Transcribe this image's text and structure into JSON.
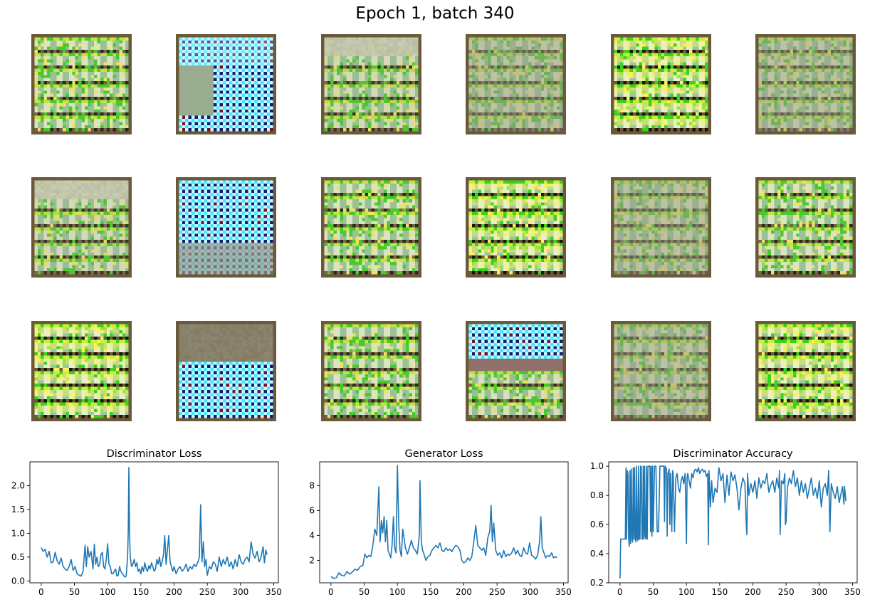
{
  "figure": {
    "suptitle": "Epoch 1, batch 340"
  },
  "samples": {
    "grid_rows": 3,
    "grid_cols": 6,
    "tile_pixel_resolution": 32,
    "kinds": [
      [
        "green-plaid",
        "cyan-blue-dots",
        "grey-top-plaid",
        "muted-plaid",
        "bright-plaid",
        "muted-plaid"
      ],
      [
        "grey-top-plaid",
        "cyan-blue-dots",
        "green-plaid",
        "bright-plaid",
        "muted-plaid",
        "green-plaid"
      ],
      [
        "bright-plaid",
        "grey-top-cyan-dots",
        "green-plaid",
        "cyan-dots-top-plaid",
        "muted-plaid",
        "bright-plaid"
      ]
    ],
    "colors": {
      "dark": "#1a1405",
      "brown": "#6b5a3a",
      "green": "#3ad21a",
      "lime": "#c8f03a",
      "yellow": "#f8f060",
      "cream": "#e8f0c8",
      "pale_green": "#9ac89a",
      "grey": "#9a9a8a",
      "cyan": "#40e8ff",
      "navy": "#102070",
      "light_cyan": "#c8f8ff",
      "maroon": "#7a1020"
    }
  },
  "chart_data": [
    {
      "type": "line",
      "title": "Discriminator Loss",
      "xlim": [
        -17,
        357
      ],
      "ylim": [
        -0.04,
        2.5
      ],
      "xticks": [
        0,
        50,
        100,
        150,
        200,
        250,
        300,
        350
      ],
      "yticks": [
        0.0,
        0.5,
        1.0,
        1.5,
        2.0
      ],
      "ytick_labels": [
        "0.0",
        "0.5",
        "1.0",
        "1.5",
        "2.0"
      ],
      "color": "#1f77b4",
      "x": [
        0,
        3,
        6,
        9,
        12,
        15,
        18,
        21,
        24,
        27,
        30,
        33,
        36,
        39,
        42,
        45,
        48,
        51,
        54,
        57,
        60,
        63,
        66,
        68,
        70,
        72,
        75,
        78,
        80,
        82,
        84,
        86,
        88,
        90,
        92,
        94,
        96,
        98,
        100,
        102,
        104,
        106,
        108,
        110,
        112,
        114,
        116,
        118,
        120,
        122,
        124,
        126,
        128,
        130,
        131,
        132,
        133,
        134,
        136,
        138,
        140,
        142,
        144,
        146,
        148,
        150,
        152,
        154,
        156,
        158,
        160,
        162,
        164,
        166,
        168,
        170,
        172,
        174,
        176,
        178,
        180,
        182,
        184,
        186,
        188,
        190,
        192,
        194,
        196,
        198,
        200,
        203,
        206,
        209,
        212,
        215,
        218,
        221,
        224,
        227,
        230,
        233,
        236,
        238,
        240,
        242,
        244,
        246,
        248,
        250,
        253,
        256,
        259,
        262,
        265,
        268,
        271,
        274,
        277,
        280,
        283,
        286,
        289,
        292,
        295,
        298,
        301,
        304,
        307,
        310,
        313,
        316,
        319,
        322,
        325,
        328,
        331,
        334,
        336,
        338,
        340
      ],
      "y": [
        0.7,
        0.62,
        0.66,
        0.5,
        0.62,
        0.38,
        0.4,
        0.6,
        0.42,
        0.35,
        0.48,
        0.3,
        0.25,
        0.22,
        0.3,
        0.45,
        0.22,
        0.3,
        0.15,
        0.12,
        0.1,
        0.2,
        0.75,
        0.3,
        0.72,
        0.5,
        0.62,
        0.25,
        0.77,
        0.35,
        0.5,
        0.3,
        0.35,
        0.55,
        0.6,
        0.3,
        0.25,
        0.45,
        0.78,
        0.35,
        0.3,
        0.15,
        0.15,
        0.2,
        0.25,
        0.1,
        0.12,
        0.3,
        0.2,
        0.15,
        0.12,
        0.08,
        0.1,
        0.5,
        1.0,
        2.38,
        1.0,
        0.5,
        0.3,
        0.35,
        0.45,
        0.3,
        0.38,
        0.2,
        0.25,
        0.15,
        0.3,
        0.2,
        0.38,
        0.25,
        0.2,
        0.32,
        0.25,
        0.38,
        0.3,
        0.2,
        0.25,
        0.45,
        0.35,
        0.5,
        0.3,
        0.4,
        0.55,
        0.95,
        0.35,
        0.65,
        0.95,
        0.4,
        0.3,
        0.2,
        0.3,
        0.15,
        0.25,
        0.3,
        0.2,
        0.25,
        0.35,
        0.2,
        0.3,
        0.25,
        0.35,
        0.3,
        0.4,
        0.5,
        1.6,
        0.4,
        0.82,
        0.3,
        0.45,
        0.12,
        0.3,
        0.25,
        0.4,
        0.35,
        0.2,
        0.5,
        0.3,
        0.45,
        0.35,
        0.5,
        0.3,
        0.4,
        0.25,
        0.45,
        0.3,
        0.55,
        0.4,
        0.35,
        0.45,
        0.5,
        0.4,
        0.82,
        0.55,
        0.48,
        0.62,
        0.4,
        0.5,
        0.72,
        0.38,
        0.65,
        0.55
      ]
    },
    {
      "type": "line",
      "title": "Generator Loss",
      "xlim": [
        -17,
        357
      ],
      "ylim": [
        0.2,
        9.9
      ],
      "xticks": [
        0,
        50,
        100,
        150,
        200,
        250,
        300,
        350
      ],
      "yticks": [
        2,
        4,
        6,
        8
      ],
      "ytick_labels": [
        "2",
        "4",
        "6",
        "8"
      ],
      "color": "#1f77b4",
      "x": [
        0,
        4,
        8,
        12,
        16,
        20,
        24,
        28,
        32,
        36,
        40,
        44,
        48,
        51,
        54,
        57,
        60,
        63,
        66,
        69,
        72,
        74,
        76,
        78,
        80,
        82,
        84,
        86,
        88,
        90,
        92,
        94,
        96,
        98,
        100,
        102,
        104,
        106,
        108,
        110,
        112,
        115,
        118,
        121,
        124,
        127,
        130,
        133,
        134,
        136,
        138,
        140,
        143,
        146,
        149,
        152,
        155,
        158,
        161,
        164,
        167,
        170,
        173,
        176,
        179,
        182,
        185,
        188,
        191,
        194,
        197,
        200,
        203,
        206,
        209,
        212,
        215,
        218,
        221,
        224,
        227,
        230,
        233,
        236,
        239,
        241,
        243,
        245,
        248,
        251,
        254,
        257,
        260,
        263,
        266,
        269,
        272,
        275,
        278,
        281,
        284,
        287,
        290,
        293,
        296,
        299,
        302,
        305,
        308,
        311,
        314,
        316,
        318,
        320,
        323,
        326,
        329,
        332,
        335,
        338,
        340
      ],
      "y": [
        0.7,
        0.55,
        0.6,
        1.0,
        0.8,
        0.75,
        1.1,
        0.9,
        1.05,
        1.3,
        1.2,
        1.5,
        1.6,
        2.5,
        2.2,
        2.4,
        2.3,
        3.2,
        4.5,
        4.0,
        7.9,
        3.5,
        5.2,
        4.2,
        5.5,
        3.5,
        5.2,
        2.8,
        2.5,
        2.2,
        3.2,
        5.5,
        3.0,
        2.6,
        9.6,
        5.0,
        2.8,
        2.3,
        4.5,
        3.8,
        3.0,
        2.5,
        3.0,
        3.6,
        3.0,
        2.8,
        2.5,
        4.0,
        8.4,
        3.5,
        2.8,
        2.5,
        2.0,
        2.3,
        2.4,
        2.8,
        3.0,
        3.2,
        3.0,
        3.4,
        2.8,
        2.7,
        3.0,
        2.8,
        2.9,
        2.7,
        3.0,
        3.2,
        3.1,
        2.8,
        2.0,
        1.8,
        1.9,
        2.2,
        2.0,
        2.3,
        3.5,
        4.8,
        3.2,
        3.0,
        2.8,
        3.0,
        2.4,
        3.8,
        4.3,
        6.4,
        3.5,
        5.0,
        2.8,
        2.4,
        2.6,
        2.2,
        2.8,
        2.3,
        2.5,
        2.4,
        2.6,
        3.0,
        2.5,
        2.8,
        2.4,
        2.3,
        3.0,
        2.6,
        2.5,
        3.4,
        2.4,
        2.3,
        2.1,
        2.4,
        3.5,
        5.5,
        3.0,
        2.7,
        2.2,
        2.4,
        2.3,
        2.6,
        2.2,
        2.3,
        2.2
      ]
    },
    {
      "type": "line",
      "title": "Discriminator Accuracy",
      "xlim": [
        -17,
        357
      ],
      "ylim": [
        0.2,
        1.03
      ],
      "xticks": [
        0,
        50,
        100,
        150,
        200,
        250,
        300,
        350
      ],
      "yticks": [
        0.2,
        0.4,
        0.6,
        0.8,
        1.0
      ],
      "ytick_labels": [
        "0.2",
        "0.4",
        "0.6",
        "0.8",
        "1.0"
      ],
      "color": "#1f77b4",
      "x": [
        0,
        1,
        2,
        4,
        6,
        8,
        9,
        10,
        11,
        12,
        13,
        14,
        15,
        16,
        17,
        18,
        19,
        20,
        21,
        22,
        23,
        24,
        25,
        26,
        27,
        28,
        29,
        30,
        31,
        32,
        33,
        34,
        35,
        36,
        37,
        38,
        39,
        40,
        41,
        42,
        43,
        44,
        45,
        46,
        47,
        48,
        49,
        50,
        52,
        54,
        56,
        58,
        60,
        62,
        64,
        66,
        67,
        68,
        70,
        71,
        72,
        74,
        75,
        76,
        78,
        79,
        80,
        82,
        84,
        86,
        88,
        90,
        92,
        94,
        96,
        98,
        100,
        101,
        102,
        104,
        106,
        108,
        110,
        112,
        114,
        116,
        118,
        120,
        122,
        124,
        126,
        128,
        130,
        132,
        133,
        134,
        136,
        138,
        140,
        143,
        146,
        149,
        152,
        155,
        158,
        161,
        164,
        167,
        170,
        173,
        176,
        179,
        182,
        185,
        188,
        190,
        191,
        192,
        194,
        197,
        200,
        203,
        206,
        209,
        212,
        215,
        218,
        221,
        224,
        227,
        230,
        233,
        236,
        239,
        240,
        241,
        243,
        246,
        248,
        249,
        250,
        252,
        255,
        258,
        261,
        264,
        267,
        270,
        273,
        276,
        279,
        282,
        285,
        288,
        291,
        294,
        297,
        300,
        303,
        306,
        309,
        312,
        314,
        316,
        318,
        321,
        324,
        327,
        330,
        333,
        335,
        337,
        338,
        340
      ],
      "y": [
        0.23,
        0.5,
        0.5,
        0.5,
        0.5,
        0.5,
        0.99,
        0.5,
        0.97,
        0.95,
        0.5,
        0.45,
        0.97,
        0.47,
        0.98,
        0.5,
        0.48,
        0.99,
        0.5,
        0.99,
        0.5,
        0.48,
        1.0,
        0.5,
        0.49,
        1.0,
        0.5,
        0.5,
        1.0,
        1.0,
        0.5,
        0.5,
        1.0,
        0.5,
        1.0,
        0.52,
        0.5,
        1.0,
        0.5,
        1.0,
        1.0,
        1.0,
        1.0,
        0.55,
        1.0,
        0.52,
        1.0,
        0.55,
        1.0,
        1.0,
        0.55,
        0.55,
        1.0,
        1.0,
        1.0,
        1.0,
        0.62,
        1.0,
        0.98,
        0.52,
        0.95,
        0.98,
        0.6,
        0.95,
        0.55,
        0.97,
        0.95,
        0.55,
        0.92,
        0.95,
        0.85,
        0.82,
        0.9,
        0.93,
        0.88,
        0.95,
        0.47,
        0.92,
        0.95,
        0.9,
        0.85,
        0.95,
        0.92,
        0.97,
        0.98,
        0.96,
        0.99,
        0.95,
        0.97,
        0.98,
        0.96,
        0.97,
        0.93,
        0.95,
        0.46,
        0.97,
        0.72,
        0.9,
        0.75,
        0.85,
        0.82,
        0.99,
        0.9,
        0.95,
        0.75,
        0.94,
        0.8,
        0.96,
        0.9,
        0.94,
        0.85,
        0.7,
        0.85,
        0.92,
        0.88,
        0.6,
        0.53,
        0.95,
        0.8,
        0.88,
        0.82,
        0.9,
        0.78,
        0.92,
        0.85,
        0.9,
        0.88,
        0.95,
        0.82,
        0.87,
        0.9,
        0.82,
        0.92,
        0.85,
        0.97,
        0.53,
        0.9,
        0.88,
        0.95,
        0.6,
        0.62,
        0.85,
        0.92,
        0.88,
        0.97,
        0.86,
        0.92,
        0.8,
        0.9,
        0.82,
        0.88,
        0.78,
        0.85,
        0.92,
        0.8,
        0.85,
        0.78,
        0.9,
        0.72,
        0.85,
        0.88,
        0.8,
        0.97,
        0.55,
        0.88,
        0.82,
        0.78,
        0.86,
        0.75,
        0.82,
        0.86,
        0.74,
        0.86,
        0.76
      ]
    }
  ]
}
